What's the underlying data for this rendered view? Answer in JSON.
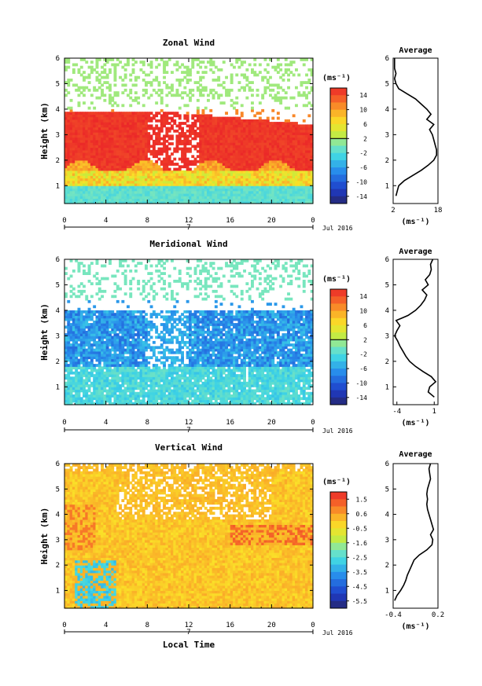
{
  "chart_data": [
    {
      "type": "heatmap",
      "title": "Zonal Wind",
      "ylabel": "Height (km)",
      "ylim": [
        0.3,
        6
      ],
      "yticks": [
        1,
        2,
        3,
        4,
        5,
        6
      ],
      "xlim": [
        0,
        24
      ],
      "xticks": [
        "0",
        "4",
        "8",
        "12",
        "16",
        "20",
        "0"
      ],
      "date_marker": "7",
      "date_label": "Jul 2016",
      "colorbar": {
        "unit": "(ms⁻¹)",
        "ticks": [
          "14",
          "10",
          "6",
          "2",
          "-2",
          "-6",
          "-10",
          "-14"
        ],
        "range": [
          -16,
          16
        ],
        "zero_line": 2
      },
      "regions": [
        {
          "desc": "strong positive (red) zonal wind core",
          "x": [
            0,
            24
          ],
          "y": [
            1.6,
            4.0
          ],
          "value": 14
        },
        {
          "desc": "weak positive near surface",
          "x": [
            0,
            24
          ],
          "y": [
            1.0,
            1.6
          ],
          "value": 4
        },
        {
          "desc": "weak negative (cyan) boundary layer",
          "x": [
            0,
            24
          ],
          "y": [
            0.3,
            1.0
          ],
          "value": -2
        },
        {
          "desc": "sparse weak wind aloft",
          "x": [
            0,
            24
          ],
          "y": [
            4.5,
            6.0
          ],
          "value": 0
        }
      ],
      "average_profile": {
        "title": "Average",
        "xlabel": "(ms⁻¹)",
        "xticks": [
          "2",
          "18"
        ],
        "xlim": [
          2,
          18
        ],
        "ylim": [
          0.3,
          6
        ],
        "yticks": [
          1,
          2,
          3,
          4,
          5,
          6
        ],
        "height": [
          0.6,
          0.8,
          1.0,
          1.2,
          1.4,
          1.6,
          1.8,
          2.0,
          2.2,
          2.4,
          2.6,
          2.8,
          3.0,
          3.2,
          3.4,
          3.6,
          3.8,
          4.0,
          4.2,
          4.4,
          4.6,
          4.8,
          5.0,
          5.2,
          5.4,
          5.6,
          5.8,
          6.0
        ],
        "speed": [
          3,
          3.5,
          4,
          6,
          9,
          12,
          14.5,
          16.5,
          17.5,
          17.5,
          17,
          16.5,
          16,
          15,
          16.5,
          14,
          15.5,
          14,
          12,
          10,
          7,
          4,
          3,
          2.5,
          3,
          2.5,
          2.5,
          2.5
        ]
      }
    },
    {
      "type": "heatmap",
      "title": "Meridional Wind",
      "ylabel": "Height (km)",
      "ylim": [
        0.3,
        6
      ],
      "yticks": [
        1,
        2,
        3,
        4,
        5,
        6
      ],
      "xlim": [
        0,
        24
      ],
      "xticks": [
        "0",
        "4",
        "8",
        "12",
        "16",
        "20",
        "0"
      ],
      "date_marker": "7",
      "date_label": "Jul 2016",
      "colorbar": {
        "unit": "(ms⁻¹)",
        "ticks": [
          "14",
          "10",
          "6",
          "2",
          "-2",
          "-6",
          "-10",
          "-14"
        ],
        "range": [
          -16,
          16
        ],
        "zero_line": 2
      },
      "regions": [
        {
          "desc": "negative (blue) southward flow",
          "x": [
            0,
            24
          ],
          "y": [
            1.8,
            4.0
          ],
          "value": -8
        },
        {
          "desc": "weak negative (cyan) low levels",
          "x": [
            0,
            24
          ],
          "y": [
            0.3,
            1.8
          ],
          "value": -3
        },
        {
          "desc": "sparse weak wind aloft",
          "x": [
            0,
            24
          ],
          "y": [
            4.5,
            6.0
          ],
          "value": 0
        }
      ],
      "average_profile": {
        "title": "Average",
        "xlabel": "(ms⁻¹)",
        "xticks": [
          "-4",
          "1"
        ],
        "xlim": [
          -4.5,
          1.5
        ],
        "ylim": [
          0.3,
          6
        ],
        "yticks": [
          1,
          2,
          3,
          4,
          5,
          6
        ],
        "height": [
          0.6,
          0.8,
          1.0,
          1.2,
          1.4,
          1.6,
          1.8,
          2.0,
          2.2,
          2.4,
          2.6,
          2.8,
          3.0,
          3.2,
          3.4,
          3.6,
          3.8,
          4.0,
          4.2,
          4.4,
          4.6,
          4.8,
          5.0,
          5.2,
          5.4,
          5.6,
          5.8,
          6.0
        ],
        "speed": [
          1,
          0.2,
          0.4,
          1.2,
          0.6,
          -0.5,
          -1.5,
          -2.3,
          -2.8,
          -3.2,
          -3.6,
          -3.9,
          -4.3,
          -4.0,
          -3.6,
          -4.1,
          -2.5,
          -1.5,
          -0.8,
          -0.3,
          0,
          -0.6,
          0.2,
          -0.2,
          0.4,
          0.6,
          0.5,
          0.8
        ]
      }
    },
    {
      "type": "heatmap",
      "title": "Vertical Wind",
      "ylabel": "Height (km)",
      "xlabel": "Local Time",
      "ylim": [
        0.3,
        6
      ],
      "yticks": [
        1,
        2,
        3,
        4,
        5,
        6
      ],
      "xlim": [
        0,
        24
      ],
      "xticks": [
        "0",
        "4",
        "8",
        "12",
        "16",
        "20",
        "0"
      ],
      "date_marker": "7",
      "date_label": "Jul 2016",
      "colorbar": {
        "unit": "(ms⁻¹)",
        "ticks": [
          "1.5",
          "0.6",
          "-0.5",
          "-1.6",
          "-2.5",
          "-3.5",
          "-4.5",
          "-5.5"
        ],
        "range": [
          -6,
          2
        ]
      },
      "regions": [
        {
          "desc": "weak positive (orange) vertical wind",
          "x": [
            0,
            24
          ],
          "y": [
            0.3,
            6.0
          ],
          "value": 0.3
        },
        {
          "desc": "stronger updraft bands",
          "x": [
            16,
            24
          ],
          "y": [
            2.8,
            3.6
          ],
          "value": 1.5
        },
        {
          "desc": "downdraft near surface",
          "x": [
            1,
            5
          ],
          "y": [
            0.3,
            2.2
          ],
          "value": -3
        }
      ],
      "average_profile": {
        "title": "Average",
        "xlabel": "(ms⁻¹)",
        "xticks": [
          "-0.4",
          "0.2"
        ],
        "xlim": [
          -0.4,
          0.2
        ],
        "ylim": [
          0.3,
          6
        ],
        "yticks": [
          1,
          2,
          3,
          4,
          5,
          6
        ],
        "height": [
          0.6,
          0.8,
          1.0,
          1.2,
          1.4,
          1.6,
          1.8,
          2.0,
          2.2,
          2.4,
          2.6,
          2.8,
          3.0,
          3.2,
          3.4,
          3.6,
          3.8,
          4.0,
          4.2,
          4.4,
          4.6,
          4.8,
          5.0,
          5.2,
          5.4,
          5.6,
          5.8,
          6.0
        ],
        "speed": [
          -0.38,
          -0.35,
          -0.3,
          -0.26,
          -0.23,
          -0.21,
          -0.18,
          -0.15,
          -0.12,
          -0.05,
          0.05,
          0.12,
          0.13,
          0.1,
          0.14,
          0.12,
          0.1,
          0.08,
          0.06,
          0.05,
          0.06,
          0.05,
          0.06,
          0.08,
          0.1,
          0.09,
          0.08,
          0.1
        ]
      }
    }
  ]
}
